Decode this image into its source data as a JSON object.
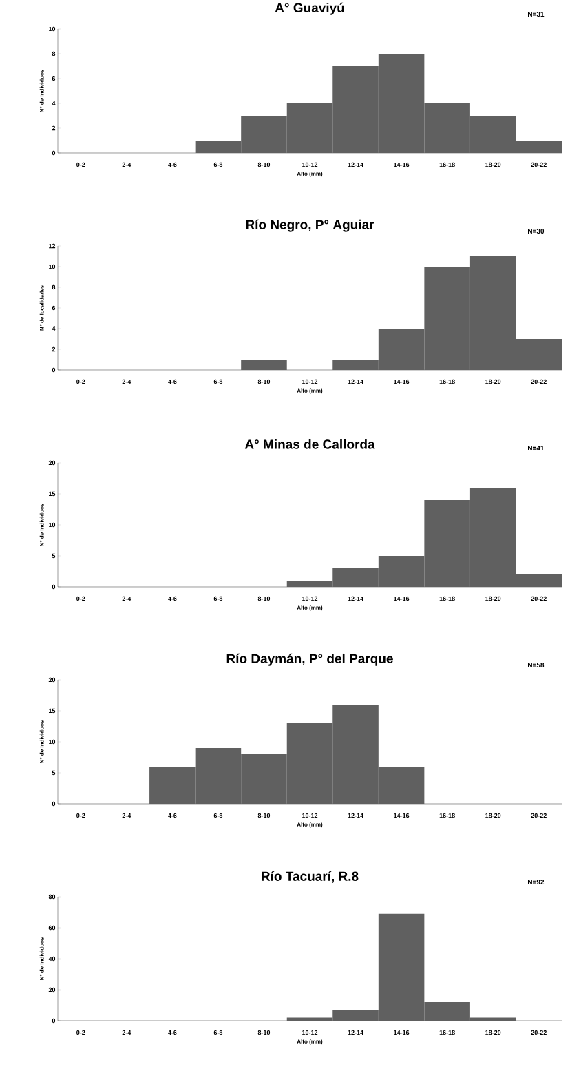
{
  "chart_data": [
    {
      "type": "bar",
      "title": "A° Guaviyú",
      "annotations": [
        "N=31"
      ],
      "xlabel": "Alto (mm)",
      "ylabel": "N° de Individuos",
      "categories": [
        "0-2",
        "2-4",
        "4-6",
        "6-8",
        "8-10",
        "10-12",
        "12-14",
        "14-16",
        "16-18",
        "18-20",
        "20-22"
      ],
      "values": [
        0,
        0,
        0,
        1,
        3,
        4,
        7,
        8,
        4,
        3,
        1
      ],
      "color": "#606060",
      "ylim": [
        0,
        10
      ],
      "yticks": [
        0,
        2,
        4,
        6,
        8,
        10
      ]
    },
    {
      "type": "bar",
      "title": "Río Negro, P° Aguiar",
      "annotations": [
        "N=30"
      ],
      "xlabel": "Alto (mm)",
      "ylabel": "N° de localidades",
      "categories": [
        "0-2",
        "2-4",
        "4-6",
        "6-8",
        "8-10",
        "10-12",
        "12-14",
        "14-16",
        "16-18",
        "18-20",
        "20-22"
      ],
      "values": [
        0,
        0,
        0,
        0,
        1,
        0,
        1,
        4,
        10,
        11,
        3
      ],
      "color": "#606060",
      "ylim": [
        0,
        12
      ],
      "yticks": [
        0,
        2,
        4,
        6,
        8,
        10,
        12
      ]
    },
    {
      "type": "bar",
      "title": "A° Minas de Callorda",
      "annotations": [
        "N=41"
      ],
      "xlabel": "Alto (mm)",
      "ylabel": "N° de Individuos",
      "categories": [
        "0-2",
        "2-4",
        "4-6",
        "6-8",
        "8-10",
        "10-12",
        "12-14",
        "14-16",
        "16-18",
        "18-20",
        "20-22"
      ],
      "values": [
        0,
        0,
        0,
        0,
        0,
        1,
        3,
        5,
        14,
        16,
        2
      ],
      "color": "#606060",
      "ylim": [
        0,
        20
      ],
      "yticks": [
        0,
        5,
        10,
        15,
        20
      ]
    },
    {
      "type": "bar",
      "title": "Río Daymán, P° del Parque",
      "annotations": [
        "N=58"
      ],
      "xlabel": "Alto (mm)",
      "ylabel": "N° de Individuos",
      "categories": [
        "0-2",
        "2-4",
        "4-6",
        "6-8",
        "8-10",
        "10-12",
        "12-14",
        "14-16",
        "16-18",
        "18-20",
        "20-22"
      ],
      "values": [
        0,
        0,
        6,
        9,
        8,
        13,
        16,
        6,
        0,
        0,
        0
      ],
      "color": "#606060",
      "ylim": [
        0,
        20
      ],
      "yticks": [
        0,
        5,
        10,
        15,
        20
      ]
    },
    {
      "type": "bar",
      "title": "Río Tacuarí, R.8",
      "annotations": [
        "N=92"
      ],
      "xlabel": "Alto (mm)",
      "ylabel": "N° de Individuos",
      "categories": [
        "0-2",
        "2-4",
        "4-6",
        "6-8",
        "8-10",
        "10-12",
        "12-14",
        "14-16",
        "16-18",
        "18-20",
        "20-22"
      ],
      "values": [
        0,
        0,
        0,
        0,
        0,
        2,
        7,
        69,
        12,
        2,
        0
      ],
      "color": "#606060",
      "ylim": [
        0,
        80
      ],
      "yticks": [
        0,
        20,
        40,
        60,
        80
      ]
    }
  ]
}
